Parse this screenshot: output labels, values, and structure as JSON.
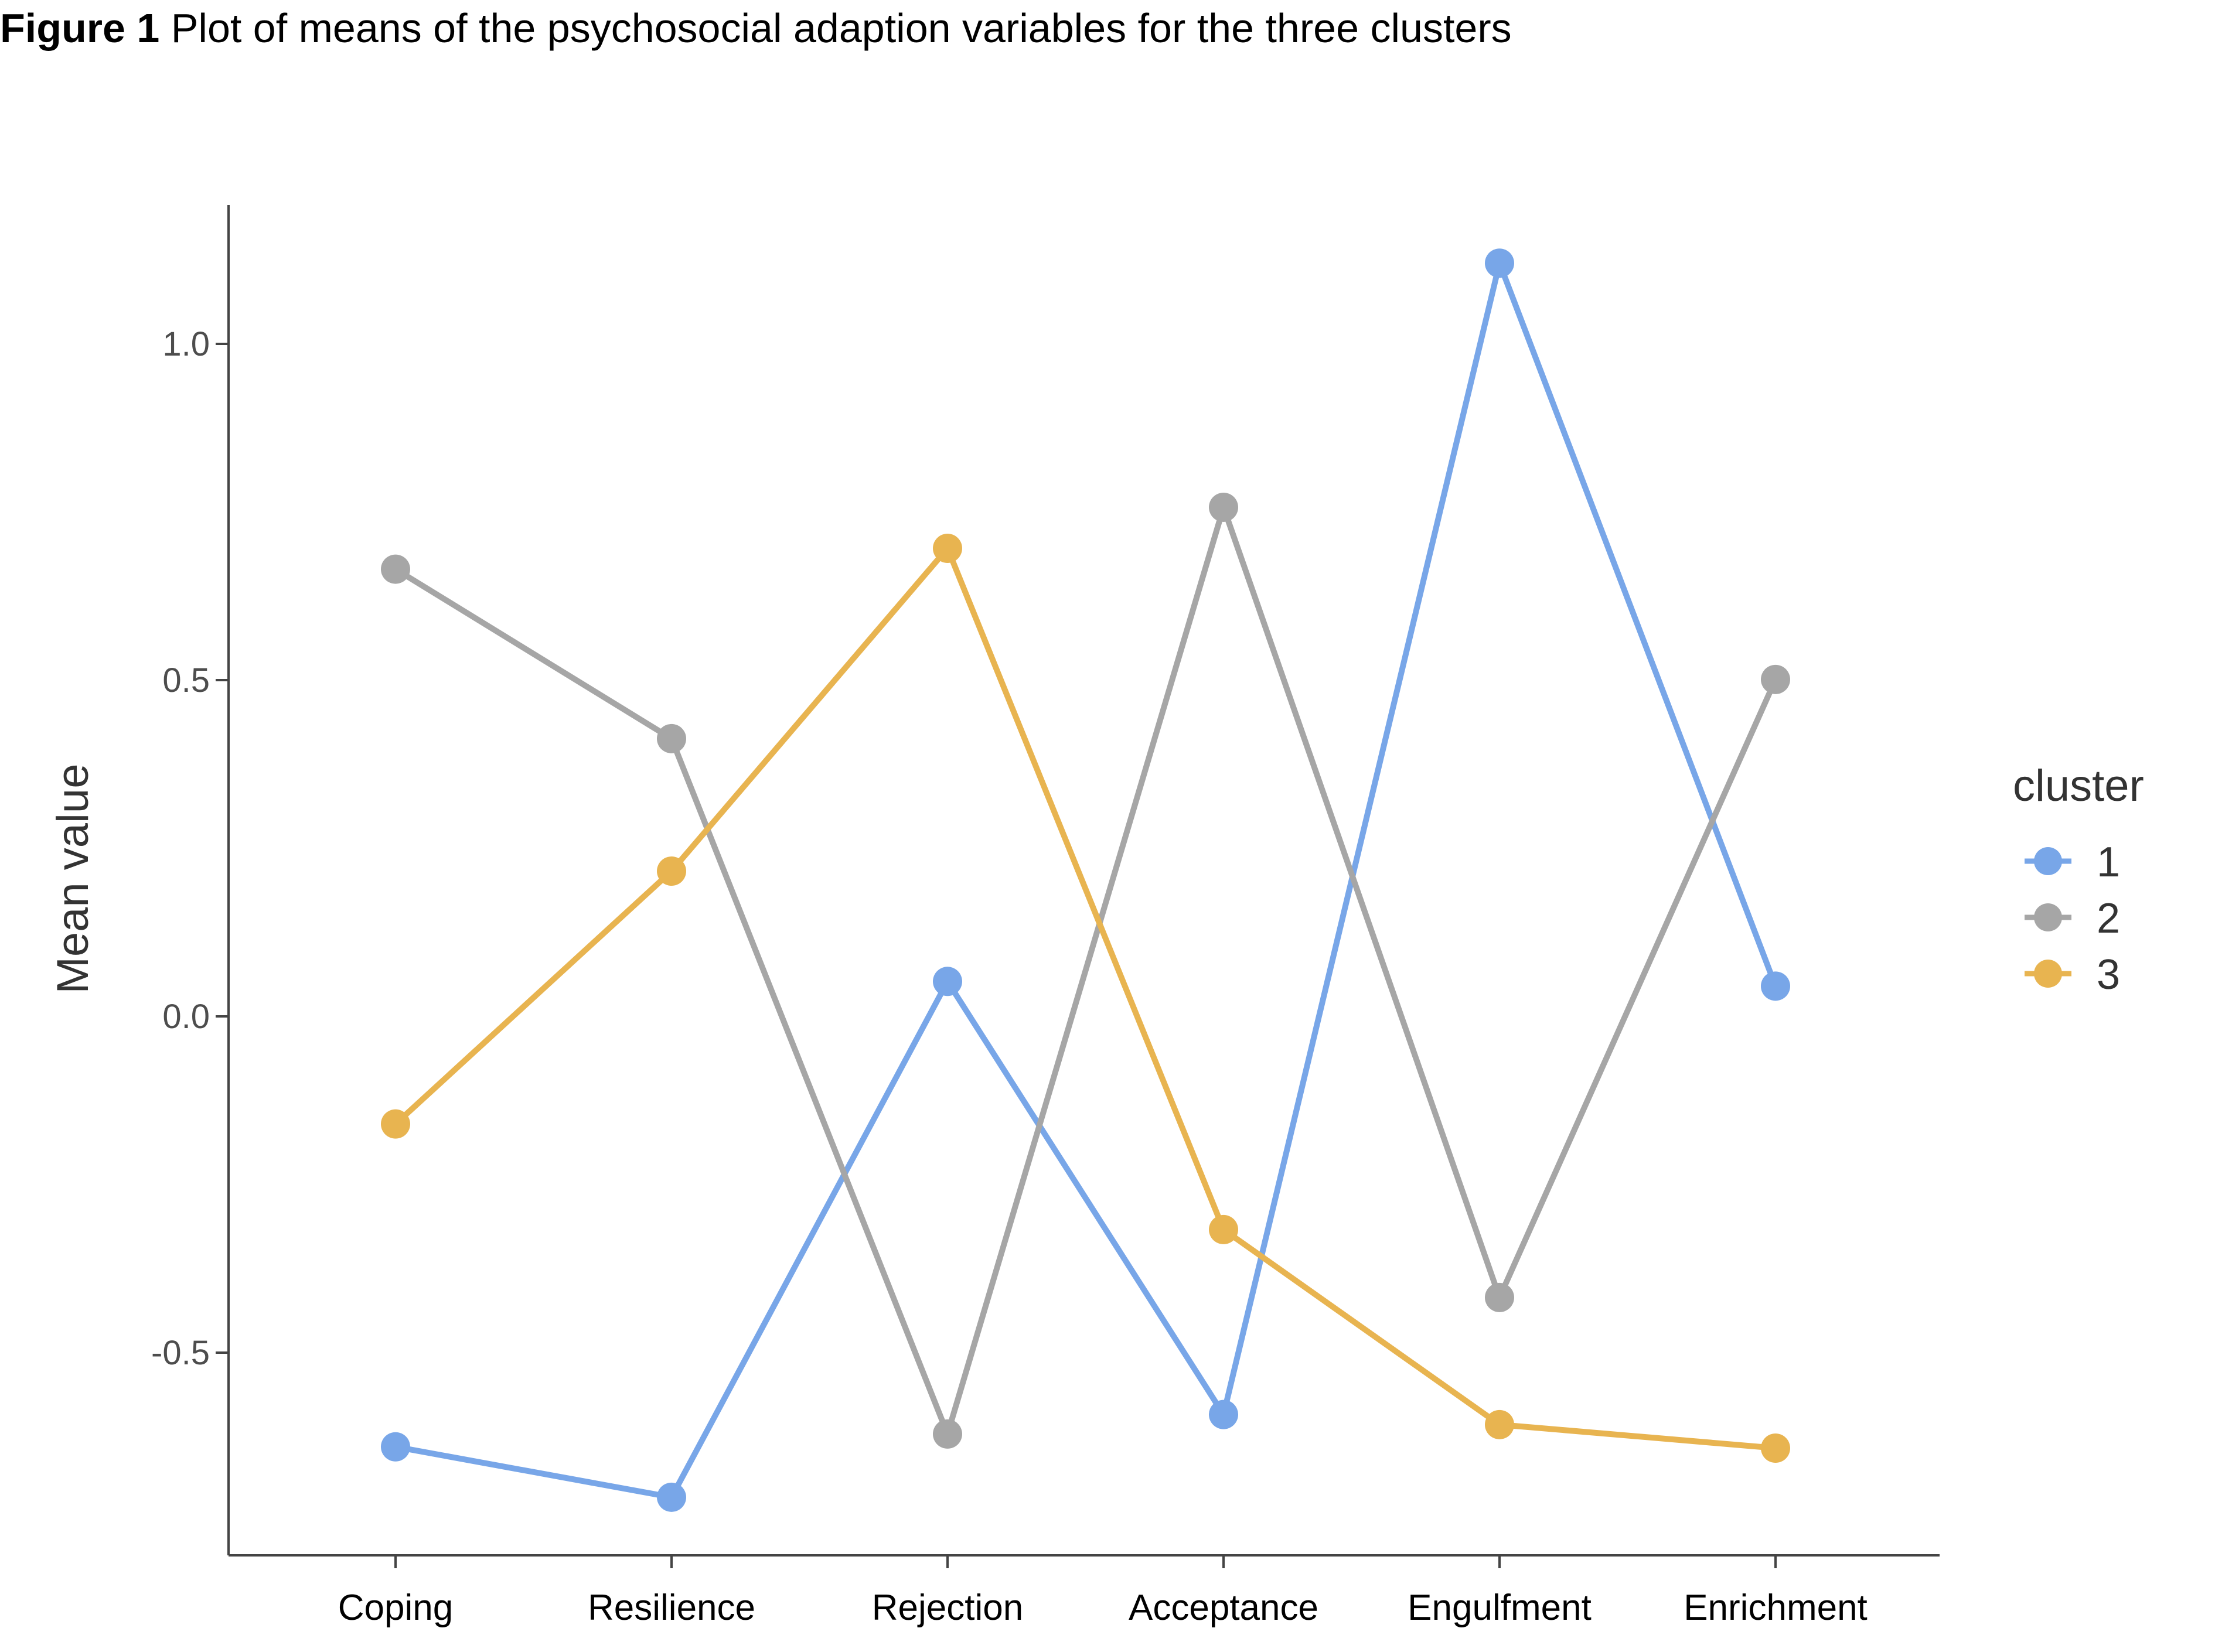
{
  "figure": {
    "label": "Figure 1",
    "caption": " Plot of means of the psychosocial adaption variables for the three clusters"
  },
  "chart_data": {
    "type": "line",
    "categories": [
      "Coping",
      "Resilience",
      "Rejection",
      "Acceptance",
      "Engulfment",
      "Enrichment"
    ],
    "ylabel": "Mean value",
    "xlabel": "",
    "ylim": [
      -0.8,
      1.2
    ],
    "yticks": [
      -0.5,
      0.0,
      0.5,
      1.0
    ],
    "ytick_labels": [
      "-0.5",
      "0.0",
      "0.5",
      "1.0"
    ],
    "legend": {
      "title": "cluster",
      "position": "right"
    },
    "series": [
      {
        "name": "1",
        "color": "#78a6e8",
        "values": [
          -0.64,
          -0.715,
          0.052,
          -0.592,
          1.12,
          0.045
        ]
      },
      {
        "name": "2",
        "color": "#a6a6a6",
        "values": [
          0.665,
          0.413,
          -0.621,
          0.757,
          -0.418,
          0.501
        ]
      },
      {
        "name": "3",
        "color": "#e8b450",
        "values": [
          -0.16,
          0.216,
          0.696,
          -0.317,
          -0.607,
          -0.642
        ]
      }
    ]
  }
}
